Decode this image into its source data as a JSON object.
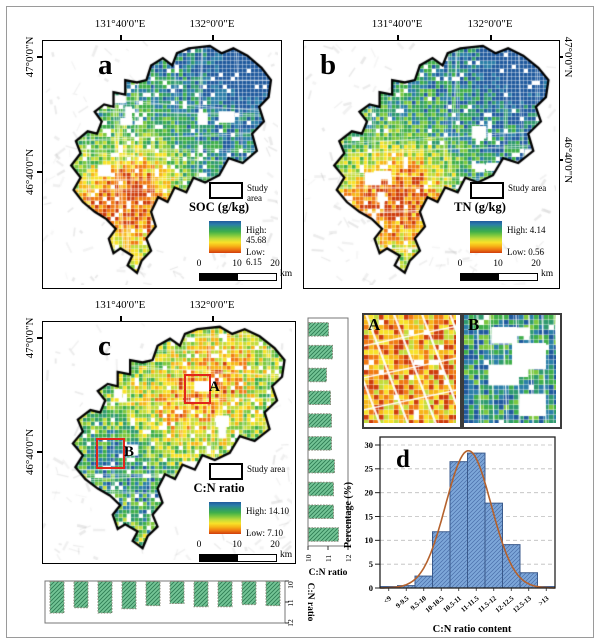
{
  "colors": {
    "ramp_low_to_high": [
      "#cf3d0c",
      "#f07a12",
      "#f7b618",
      "#f8e229",
      "#c3dc3a",
      "#7cc83f",
      "#3faf4a",
      "#2f9a6e",
      "#2b7fa8",
      "#205a9e"
    ],
    "marker_red": "#e0261a",
    "histogram_bar_fill": "#7da7d9",
    "histogram_bar_edge": "#3a5a8c",
    "histogram_curve": "#b5622d",
    "strip_bar_fill": "#74c596",
    "strip_bar_hatch": "#2e7d54"
  },
  "panel_a": {
    "letter": "a",
    "lon_labels": [
      "131°40'0\"E",
      "132°0'0\"E"
    ],
    "lat_labels": [
      "47°0'0\"N",
      "46°40'0\"N"
    ],
    "legend": {
      "study_area": "Study area",
      "title": "SOC (g/kg)",
      "high": "High: 45.68",
      "low": "Low: 6.15"
    },
    "scalebar": {
      "ticks": [
        "0",
        "10",
        "20"
      ],
      "unit": "km"
    }
  },
  "panel_b": {
    "letter": "b",
    "lon_labels": [
      "131°40'0\"E",
      "132°0'0\"E"
    ],
    "lat_labels": [
      "47°0'0\"N",
      "46°40'0\"N"
    ],
    "legend": {
      "study_area": "Study area",
      "title": "TN (g/kg)",
      "high": "High: 4.14",
      "low": "Low: 0.56"
    },
    "scalebar": {
      "ticks": [
        "0",
        "10",
        "20"
      ],
      "unit": "km"
    }
  },
  "panel_c": {
    "letter": "c",
    "lon_labels": [
      "131°40'0\"E",
      "132°0'0\"E"
    ],
    "lat_labels": [
      "47°0'0\"N",
      "46°40'0\"N"
    ],
    "legend": {
      "study_area": "Study area",
      "title": "C:N ratio",
      "high": "High: 14.10",
      "low": "Low: 7.10"
    },
    "scalebar": {
      "ticks": [
        "0",
        "10",
        "20"
      ],
      "unit": "km"
    },
    "markers": {
      "a": "A",
      "b": "B"
    }
  },
  "inset_a": {
    "letter": "A"
  },
  "inset_b": {
    "letter": "B"
  },
  "chart_data": [
    {
      "id": "histogram_d",
      "type": "bar",
      "panel_letter": "d",
      "categories": [
        "<9",
        "9-9.5",
        "9.5-10",
        "10-10.5",
        "10.5-11",
        "11-11.5",
        "11.5-12",
        "12-12.5",
        "12.5-13",
        ">13"
      ],
      "values": [
        0.3,
        0.5,
        2.5,
        11.8,
        26.5,
        28.3,
        17.8,
        9.1,
        3.2,
        0.3
      ],
      "curve": {
        "type": "normal-fit",
        "peak": 28.8,
        "center_bin": 5.05,
        "sigma_bins": 1.3
      },
      "xlabel": "C:N ratio content",
      "ylabel": "Percentage (%)",
      "yticks": [
        0,
        5,
        10,
        15,
        20,
        25,
        30
      ],
      "ylim": [
        0,
        31.7
      ],
      "grid": "dashed-horizontal"
    },
    {
      "id": "mean_cn_ratio_by_latitude_strip",
      "type": "bar",
      "orientation": "horizontal-bars",
      "axis_label": "C:N ratio",
      "ticks": [
        "10",
        "11",
        "12"
      ],
      "axis_range": [
        10,
        12
      ],
      "values": [
        11.0,
        11.2,
        10.9,
        11.1,
        11.15,
        11.15,
        11.3,
        11.25,
        11.25,
        11.5
      ]
    },
    {
      "id": "mean_cn_ratio_by_longitude_strip",
      "type": "bar",
      "orientation": "vertical-bars",
      "axis_label": "C:N ratio",
      "ticks": [
        "10",
        "11",
        "12"
      ],
      "axis_range": [
        10,
        12
      ],
      "values": [
        11.5,
        11.25,
        11.5,
        11.3,
        11.15,
        11.05,
        11.2,
        11.2,
        11.1,
        11.15
      ]
    }
  ]
}
